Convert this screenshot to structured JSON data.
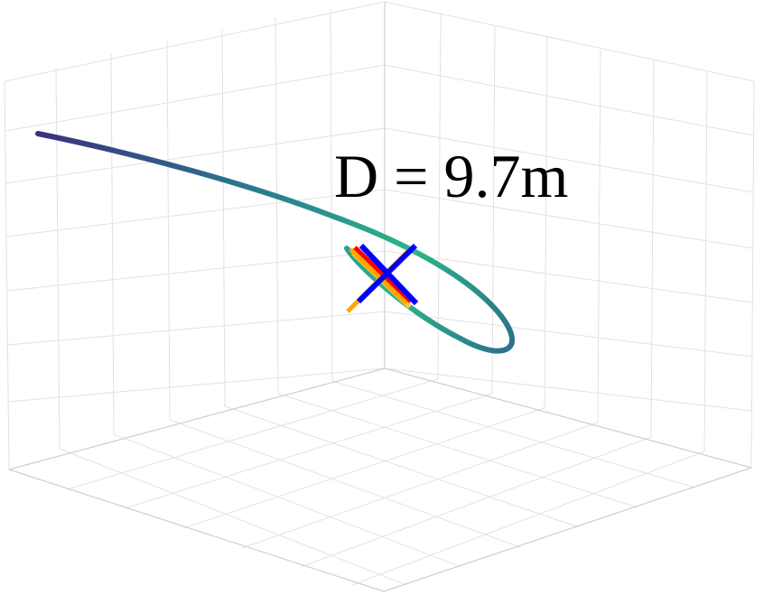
{
  "annotation": {
    "distance_label": "D = 9.7m"
  },
  "colors": {
    "trajectory_start": "#3b2f7f",
    "trajectory_mid": "#2a7f8e",
    "trajectory_end": "#2db58a",
    "marker_blue": "#0000ff",
    "marker_red": "#ff0000",
    "marker_orange": "#ffa500",
    "marker_yellow": "#f2c744",
    "grid": "#e2e2e2"
  },
  "scene": {
    "type": "3d-trajectory",
    "grid": true
  }
}
